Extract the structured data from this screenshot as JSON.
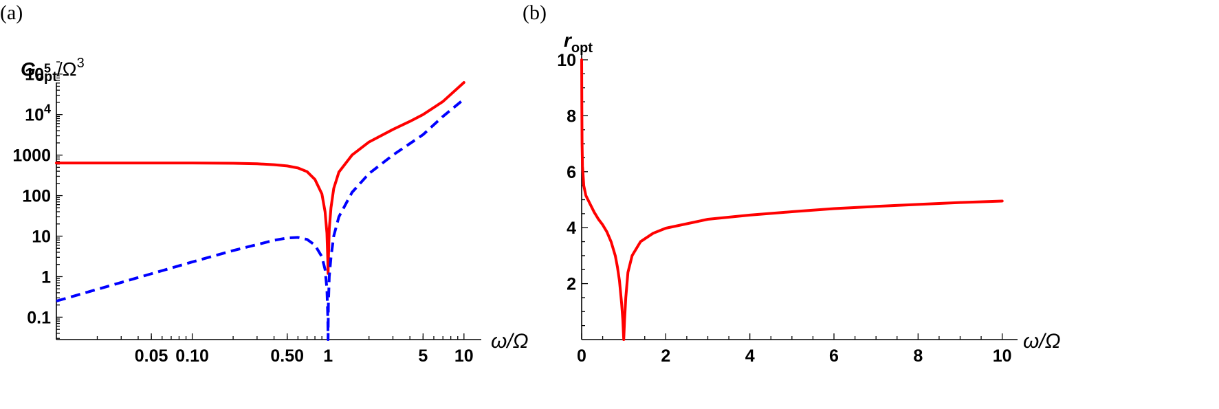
{
  "chart_data": [
    {
      "panel": "(a)",
      "type": "line",
      "ylabel": {
        "main": "G",
        "sub": "opt",
        "rest": "/Ω",
        "sup": "3"
      },
      "xlabel": "ω/Ω",
      "x_scale": "log",
      "y_scale": "log",
      "xlim": [
        0.01,
        11
      ],
      "ylim": [
        0.028,
        200000
      ],
      "x_ticks": [
        {
          "value": 0.05,
          "label": "0.05"
        },
        {
          "value": 0.1,
          "label": "0.10"
        },
        {
          "value": 0.5,
          "label": "0.50"
        },
        {
          "value": 1,
          "label": "1"
        },
        {
          "value": 5,
          "label": "5"
        },
        {
          "value": 10,
          "label": "10"
        }
      ],
      "y_ticks": [
        {
          "value": 0.1,
          "label": "0.1"
        },
        {
          "value": 1,
          "label": "1"
        },
        {
          "value": 10,
          "label": "10"
        },
        {
          "value": 100,
          "label": "100"
        },
        {
          "value": 1000,
          "label": "1000"
        },
        {
          "value": 10000,
          "label": "10",
          "exp": "4"
        },
        {
          "value": 100000,
          "label": "10",
          "exp": "5"
        }
      ],
      "series": [
        {
          "style": "solid",
          "color": "#ff0000",
          "points": [
            [
              0.01,
              640
            ],
            [
              0.05,
              640
            ],
            [
              0.1,
              638
            ],
            [
              0.2,
              630
            ],
            [
              0.3,
              610
            ],
            [
              0.4,
              580
            ],
            [
              0.5,
              540
            ],
            [
              0.6,
              480
            ],
            [
              0.7,
              390
            ],
            [
              0.8,
              250
            ],
            [
              0.9,
              110
            ],
            [
              0.95,
              40
            ],
            [
              0.98,
              12
            ],
            [
              0.995,
              2.5
            ],
            [
              1.0,
              1.2
            ],
            [
              1.005,
              2.5
            ],
            [
              1.02,
              15
            ],
            [
              1.05,
              50
            ],
            [
              1.1,
              150
            ],
            [
              1.2,
              380
            ],
            [
              1.5,
              1000
            ],
            [
              2,
              2100
            ],
            [
              3,
              4300
            ],
            [
              4,
              6800
            ],
            [
              5,
              10000
            ],
            [
              7,
              21000
            ],
            [
              10,
              62000
            ]
          ]
        },
        {
          "style": "dashed",
          "color": "#0000ff",
          "points": [
            [
              0.01,
              0.25
            ],
            [
              0.03,
              0.72
            ],
            [
              0.1,
              2.3
            ],
            [
              0.2,
              4.4
            ],
            [
              0.3,
              6.2
            ],
            [
              0.4,
              7.9
            ],
            [
              0.5,
              9.0
            ],
            [
              0.6,
              9.3
            ],
            [
              0.7,
              8.3
            ],
            [
              0.8,
              6.0
            ],
            [
              0.9,
              3.1
            ],
            [
              0.95,
              1.5
            ],
            [
              0.98,
              0.5
            ],
            [
              0.995,
              0.1
            ],
            [
              1.0,
              0.028
            ],
            [
              1.005,
              0.2
            ],
            [
              1.02,
              1.0
            ],
            [
              1.05,
              3
            ],
            [
              1.1,
              10
            ],
            [
              1.2,
              30
            ],
            [
              1.5,
              120
            ],
            [
              2,
              350
            ],
            [
              3,
              1000
            ],
            [
              5,
              3200
            ],
            [
              7,
              9000
            ],
            [
              10,
              24000
            ]
          ]
        }
      ]
    },
    {
      "panel": "(b)",
      "type": "line",
      "ylabel": {
        "main": "r",
        "sub": "opt"
      },
      "xlabel": "ω/Ω",
      "x_scale": "linear",
      "y_scale": "linear",
      "xlim": [
        0,
        10.3
      ],
      "ylim": [
        0,
        10
      ],
      "x_ticks": [
        {
          "value": 0,
          "label": "0"
        },
        {
          "value": 2,
          "label": "2"
        },
        {
          "value": 4,
          "label": "4"
        },
        {
          "value": 6,
          "label": "6"
        },
        {
          "value": 8,
          "label": "8"
        },
        {
          "value": 10,
          "label": "10"
        }
      ],
      "y_ticks": [
        {
          "value": 2,
          "label": "2"
        },
        {
          "value": 4,
          "label": "4"
        },
        {
          "value": 6,
          "label": "6"
        },
        {
          "value": 8,
          "label": "8"
        },
        {
          "value": 10,
          "label": "10"
        }
      ],
      "series": [
        {
          "style": "solid",
          "color": "#ff0000",
          "points": [
            [
              0.0,
              10
            ],
            [
              0.005,
              8.2
            ],
            [
              0.01,
              7.0
            ],
            [
              0.02,
              6.2
            ],
            [
              0.05,
              5.5
            ],
            [
              0.1,
              5.15
            ],
            [
              0.2,
              4.85
            ],
            [
              0.3,
              4.55
            ],
            [
              0.4,
              4.3
            ],
            [
              0.5,
              4.1
            ],
            [
              0.6,
              3.85
            ],
            [
              0.7,
              3.5
            ],
            [
              0.8,
              3.0
            ],
            [
              0.85,
              2.6
            ],
            [
              0.9,
              2.1
            ],
            [
              0.95,
              1.3
            ],
            [
              0.98,
              0.7
            ],
            [
              1.0,
              0.0
            ],
            [
              1.02,
              0.7
            ],
            [
              1.05,
              1.5
            ],
            [
              1.1,
              2.4
            ],
            [
              1.2,
              3.0
            ],
            [
              1.4,
              3.5
            ],
            [
              1.7,
              3.8
            ],
            [
              2.0,
              3.98
            ],
            [
              3.0,
              4.3
            ],
            [
              4.0,
              4.45
            ],
            [
              5.0,
              4.57
            ],
            [
              6.0,
              4.68
            ],
            [
              7.0,
              4.76
            ],
            [
              8.0,
              4.83
            ],
            [
              9.0,
              4.9
            ],
            [
              10.0,
              4.95
            ]
          ]
        }
      ]
    }
  ]
}
